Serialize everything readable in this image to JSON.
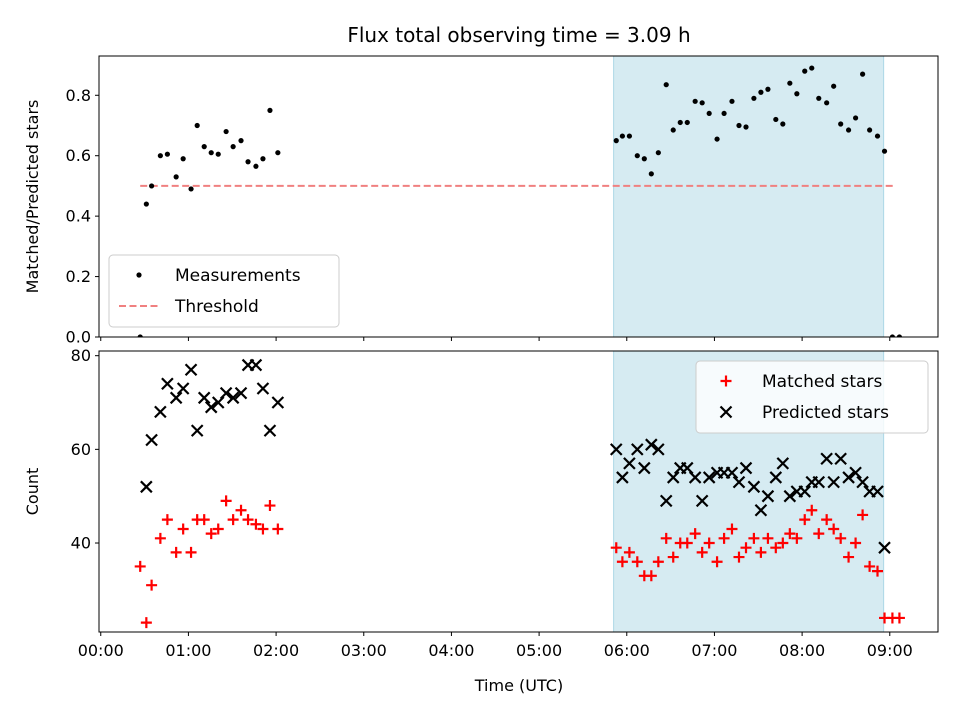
{
  "chart_data": {
    "type": "scatter",
    "title": "Flux total observing time = 3.09 h",
    "xlabel": "Time (UTC)",
    "x_ticks": [
      "00:00",
      "01:00",
      "02:00",
      "03:00",
      "04:00",
      "05:00",
      "06:00",
      "07:00",
      "08:00",
      "09:00"
    ],
    "xlim_hours": [
      -0.02,
      9.55
    ],
    "highlight_span_hours": [
      5.85,
      8.93
    ],
    "highlight_color": "#add8e6",
    "panels": [
      {
        "ylabel": "Matched/Predicted stars",
        "ylim": [
          0,
          0.93
        ],
        "y_ticks": [
          "0.0",
          "0.2",
          "0.4",
          "0.6",
          "0.8"
        ],
        "legend": {
          "placement": "lower-left",
          "entries": [
            "Measurements",
            "Threshold"
          ]
        },
        "threshold": {
          "name": "Threshold",
          "value": 0.5,
          "x_range_hours": [
            0.45,
            9.05
          ],
          "color": "#f08080",
          "style": "dashed"
        },
        "series": [
          {
            "name": "Measurements",
            "marker": "dot",
            "color": "#000000",
            "points": [
              [
                0.45,
                0.0
              ],
              [
                0.52,
                0.44
              ],
              [
                0.58,
                0.5
              ],
              [
                0.68,
                0.6
              ],
              [
                0.76,
                0.605
              ],
              [
                0.86,
                0.53
              ],
              [
                0.94,
                0.59
              ],
              [
                1.03,
                0.49
              ],
              [
                1.1,
                0.7
              ],
              [
                1.18,
                0.63
              ],
              [
                1.26,
                0.61
              ],
              [
                1.34,
                0.605
              ],
              [
                1.43,
                0.68
              ],
              [
                1.51,
                0.63
              ],
              [
                1.6,
                0.65
              ],
              [
                1.68,
                0.58
              ],
              [
                1.77,
                0.565
              ],
              [
                1.85,
                0.59
              ],
              [
                1.93,
                0.75
              ],
              [
                2.02,
                0.61
              ],
              [
                5.88,
                0.65
              ],
              [
                5.95,
                0.665
              ],
              [
                6.03,
                0.665
              ],
              [
                6.12,
                0.6
              ],
              [
                6.2,
                0.59
              ],
              [
                6.28,
                0.54
              ],
              [
                6.36,
                0.61
              ],
              [
                6.45,
                0.835
              ],
              [
                6.53,
                0.685
              ],
              [
                6.61,
                0.71
              ],
              [
                6.69,
                0.71
              ],
              [
                6.78,
                0.78
              ],
              [
                6.86,
                0.775
              ],
              [
                6.94,
                0.74
              ],
              [
                7.03,
                0.655
              ],
              [
                7.11,
                0.74
              ],
              [
                7.2,
                0.78
              ],
              [
                7.28,
                0.7
              ],
              [
                7.36,
                0.695
              ],
              [
                7.45,
                0.79
              ],
              [
                7.53,
                0.81
              ],
              [
                7.61,
                0.82
              ],
              [
                7.7,
                0.72
              ],
              [
                7.78,
                0.705
              ],
              [
                7.86,
                0.84
              ],
              [
                7.94,
                0.805
              ],
              [
                8.03,
                0.88
              ],
              [
                8.11,
                0.89
              ],
              [
                8.19,
                0.79
              ],
              [
                8.28,
                0.775
              ],
              [
                8.36,
                0.83
              ],
              [
                8.44,
                0.705
              ],
              [
                8.53,
                0.685
              ],
              [
                8.61,
                0.725
              ],
              [
                8.69,
                0.87
              ],
              [
                8.77,
                0.685
              ],
              [
                8.86,
                0.665
              ],
              [
                8.94,
                0.615
              ],
              [
                9.03,
                0.0
              ],
              [
                9.11,
                0.0
              ]
            ]
          }
        ]
      },
      {
        "ylabel": "Count",
        "ylim": [
          21,
          81
        ],
        "y_ticks": [
          "40",
          "60",
          "80"
        ],
        "legend": {
          "placement": "top-right",
          "entries": [
            "Matched stars",
            "Predicted stars"
          ]
        },
        "series": [
          {
            "name": "Matched stars",
            "marker": "plus",
            "color": "#ff0000",
            "points": [
              [
                0.45,
                35
              ],
              [
                0.52,
                23
              ],
              [
                0.58,
                31
              ],
              [
                0.68,
                41
              ],
              [
                0.76,
                45
              ],
              [
                0.86,
                38
              ],
              [
                0.94,
                43
              ],
              [
                1.03,
                38
              ],
              [
                1.1,
                45
              ],
              [
                1.18,
                45
              ],
              [
                1.26,
                42
              ],
              [
                1.34,
                43
              ],
              [
                1.43,
                49
              ],
              [
                1.51,
                45
              ],
              [
                1.6,
                47
              ],
              [
                1.68,
                45
              ],
              [
                1.77,
                44
              ],
              [
                1.85,
                43
              ],
              [
                1.93,
                48
              ],
              [
                2.02,
                43
              ],
              [
                5.88,
                39
              ],
              [
                5.95,
                36
              ],
              [
                6.03,
                38
              ],
              [
                6.12,
                36
              ],
              [
                6.2,
                33
              ],
              [
                6.28,
                33
              ],
              [
                6.36,
                36
              ],
              [
                6.45,
                41
              ],
              [
                6.53,
                37
              ],
              [
                6.61,
                40
              ],
              [
                6.69,
                40
              ],
              [
                6.78,
                42
              ],
              [
                6.86,
                38
              ],
              [
                6.94,
                40
              ],
              [
                7.03,
                36
              ],
              [
                7.11,
                41
              ],
              [
                7.2,
                43
              ],
              [
                7.28,
                37
              ],
              [
                7.36,
                39
              ],
              [
                7.45,
                41
              ],
              [
                7.53,
                38
              ],
              [
                7.61,
                41
              ],
              [
                7.7,
                39
              ],
              [
                7.78,
                40
              ],
              [
                7.86,
                42
              ],
              [
                7.94,
                41
              ],
              [
                8.03,
                45
              ],
              [
                8.11,
                47
              ],
              [
                8.19,
                42
              ],
              [
                8.28,
                45
              ],
              [
                8.36,
                43
              ],
              [
                8.44,
                41
              ],
              [
                8.53,
                37
              ],
              [
                8.61,
                40
              ],
              [
                8.69,
                46
              ],
              [
                8.77,
                35
              ],
              [
                8.86,
                34
              ],
              [
                8.94,
                24
              ],
              [
                9.03,
                24
              ],
              [
                9.11,
                24
              ]
            ]
          },
          {
            "name": "Predicted stars",
            "marker": "x",
            "color": "#000000",
            "points": [
              [
                0.52,
                52
              ],
              [
                0.58,
                62
              ],
              [
                0.68,
                68
              ],
              [
                0.76,
                74
              ],
              [
                0.86,
                71
              ],
              [
                0.94,
                73
              ],
              [
                1.03,
                77
              ],
              [
                1.1,
                64
              ],
              [
                1.18,
                71
              ],
              [
                1.26,
                69
              ],
              [
                1.34,
                70
              ],
              [
                1.43,
                72
              ],
              [
                1.51,
                71
              ],
              [
                1.6,
                72
              ],
              [
                1.68,
                78
              ],
              [
                1.77,
                78
              ],
              [
                1.85,
                73
              ],
              [
                1.93,
                64
              ],
              [
                2.02,
                70
              ],
              [
                5.88,
                60
              ],
              [
                5.95,
                54
              ],
              [
                6.03,
                57
              ],
              [
                6.12,
                60
              ],
              [
                6.2,
                56
              ],
              [
                6.28,
                61
              ],
              [
                6.36,
                60
              ],
              [
                6.45,
                49
              ],
              [
                6.53,
                54
              ],
              [
                6.61,
                56
              ],
              [
                6.69,
                56
              ],
              [
                6.78,
                54
              ],
              [
                6.86,
                49
              ],
              [
                6.94,
                54
              ],
              [
                7.03,
                55
              ],
              [
                7.11,
                55
              ],
              [
                7.2,
                55
              ],
              [
                7.28,
                53
              ],
              [
                7.36,
                56
              ],
              [
                7.45,
                52
              ],
              [
                7.53,
                47
              ],
              [
                7.61,
                50
              ],
              [
                7.7,
                54
              ],
              [
                7.78,
                57
              ],
              [
                7.86,
                50
              ],
              [
                7.94,
                51
              ],
              [
                8.03,
                51
              ],
              [
                8.11,
                53
              ],
              [
                8.19,
                53
              ],
              [
                8.28,
                58
              ],
              [
                8.36,
                53
              ],
              [
                8.44,
                58
              ],
              [
                8.53,
                54
              ],
              [
                8.61,
                55
              ],
              [
                8.69,
                53
              ],
              [
                8.77,
                51
              ],
              [
                8.86,
                51
              ],
              [
                8.94,
                39
              ]
            ]
          }
        ]
      }
    ]
  }
}
